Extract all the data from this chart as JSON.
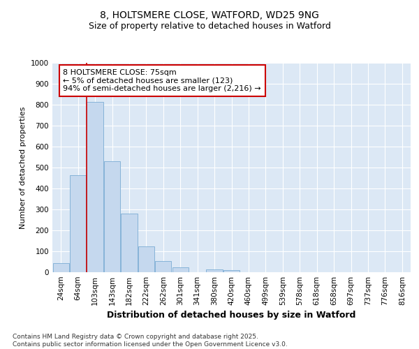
{
  "title1": "8, HOLTSMERE CLOSE, WATFORD, WD25 9NG",
  "title2": "Size of property relative to detached houses in Watford",
  "xlabel": "Distribution of detached houses by size in Watford",
  "ylabel": "Number of detached properties",
  "categories": [
    "24sqm",
    "64sqm",
    "103sqm",
    "143sqm",
    "182sqm",
    "222sqm",
    "262sqm",
    "301sqm",
    "341sqm",
    "380sqm",
    "420sqm",
    "460sqm",
    "499sqm",
    "539sqm",
    "578sqm",
    "618sqm",
    "658sqm",
    "697sqm",
    "737sqm",
    "776sqm",
    "816sqm"
  ],
  "values": [
    45,
    465,
    815,
    530,
    280,
    125,
    55,
    22,
    0,
    12,
    10,
    0,
    0,
    0,
    0,
    0,
    0,
    0,
    0,
    0,
    0
  ],
  "bar_color": "#c5d8ee",
  "bar_edge_color": "#7aacd4",
  "vline_x": 1.5,
  "vline_color": "#cc0000",
  "annotation_line1": "8 HOLTSMERE CLOSE: 75sqm",
  "annotation_line2": "← 5% of detached houses are smaller (123)",
  "annotation_line3": "94% of semi-detached houses are larger (2,216) →",
  "annotation_box_facecolor": "#ffffff",
  "annotation_box_edgecolor": "#cc0000",
  "ylim": [
    0,
    1000
  ],
  "yticks": [
    0,
    100,
    200,
    300,
    400,
    500,
    600,
    700,
    800,
    900,
    1000
  ],
  "plot_bg": "#dce8f5",
  "grid_color": "#ffffff",
  "footer": "Contains HM Land Registry data © Crown copyright and database right 2025.\nContains public sector information licensed under the Open Government Licence v3.0.",
  "title1_fontsize": 10,
  "title2_fontsize": 9,
  "ylabel_fontsize": 8,
  "xlabel_fontsize": 9,
  "tick_fontsize": 7.5,
  "ann_fontsize": 8,
  "footer_fontsize": 6.5
}
